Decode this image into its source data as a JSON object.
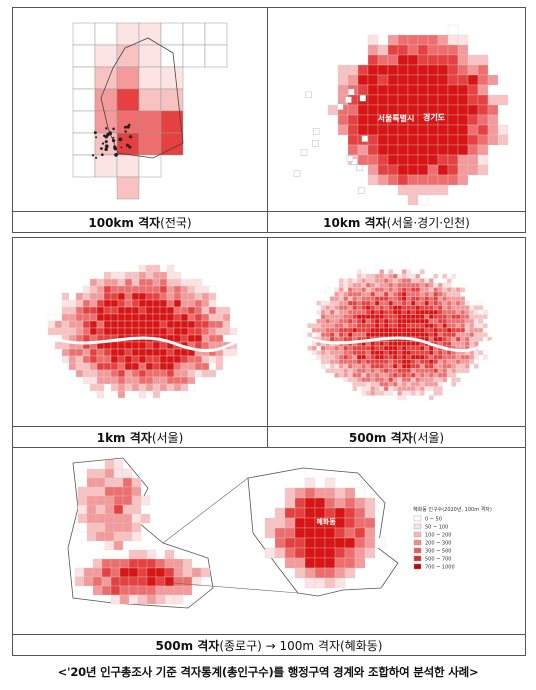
{
  "panels": [
    {
      "id": "p1",
      "caption_main": "100km 격자",
      "caption_sub": "(전국)"
    },
    {
      "id": "p2",
      "caption_main": "10km 격자",
      "caption_sub": "(서울·경기·인천)"
    },
    {
      "id": "p3",
      "caption_main": "1km 격자",
      "caption_sub": "(서울)"
    },
    {
      "id": "p4",
      "caption_main": "500m 격자",
      "caption_sub": "(서울)"
    },
    {
      "id": "p5",
      "caption_main": "500m 격자",
      "caption_sub": "(종로구) → 100m 격자(혜화동)"
    }
  ],
  "map_labels": {
    "p2_label1": "서울특별시",
    "p2_label2": "경기도",
    "p5_label": "혜화동"
  },
  "legend": {
    "title": "혜화동 인구수(2020년, 100m 격자)",
    "items": [
      {
        "label": "0 ~ 50",
        "color": "#ffffff"
      },
      {
        "label": "50 ~ 100",
        "color": "#fde0e0"
      },
      {
        "label": "100 ~ 200",
        "color": "#f9b8b8"
      },
      {
        "label": "200 ~ 300",
        "color": "#f48a8a"
      },
      {
        "label": "300 ~ 500",
        "color": "#ee5a5a"
      },
      {
        "label": "500 ~ 700",
        "color": "#e62a2a"
      },
      {
        "label": "700 ~ 1000",
        "color": "#cc0000"
      }
    ]
  },
  "footer": "<'20년 인구총조사 기준 격자통계(총인구수)를 행정구역 경계와 조합하여 분석한 사례>"
}
